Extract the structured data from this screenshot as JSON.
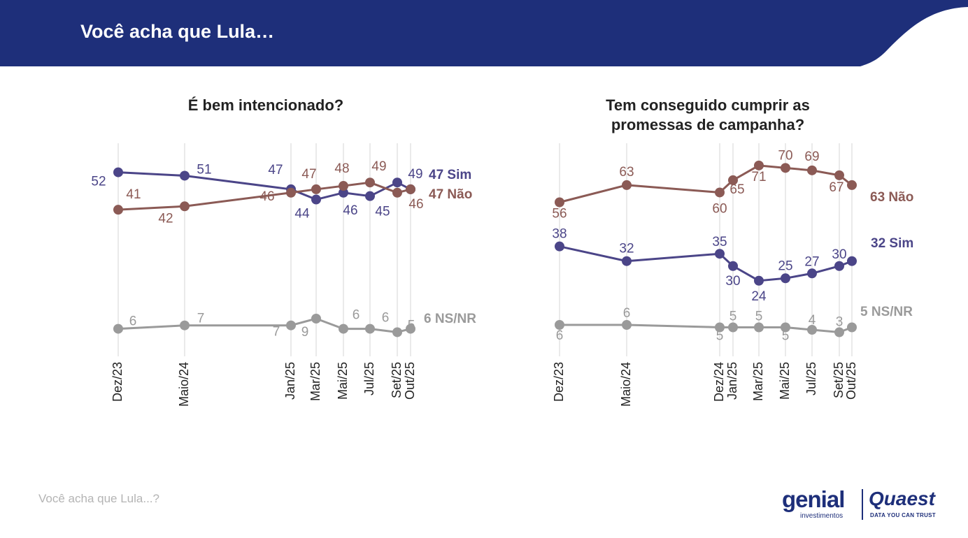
{
  "header": {
    "title": "Você acha que Lula…"
  },
  "footer": {
    "text": "Você acha que Lula...?"
  },
  "logos": {
    "genial": "genial",
    "genial_sub": "investimentos",
    "quaest": "Quaest",
    "quaest_sub": "DATA YOU CAN TRUST"
  },
  "colors": {
    "header_bg": "#1e2f7a",
    "sim": "#4b4588",
    "nao": "#8b5a55",
    "nsnr": "#9a9a9a"
  },
  "chart_data": [
    {
      "type": "line",
      "title": "É bem intencionado?",
      "x": [
        "Dez/23",
        "Maio/24",
        "Jan/25",
        "Mar/25",
        "Mai/25",
        "Jul/25",
        "Set/25",
        "Out/25"
      ],
      "series": [
        {
          "name": "Sim",
          "end_label": "47 Sim",
          "color": "#4b4588",
          "values": [
            52,
            51,
            47,
            44,
            46,
            45,
            49,
            47
          ],
          "labels": [
            "52",
            "51",
            "47",
            "44",
            "46",
            "45",
            "49",
            ""
          ]
        },
        {
          "name": "Não",
          "end_label": "47 Não",
          "color": "#8b5a55",
          "values": [
            41,
            42,
            46,
            47,
            48,
            49,
            46,
            47
          ],
          "labels": [
            "41",
            "42",
            "46",
            "47",
            "48",
            "49",
            "46",
            ""
          ]
        },
        {
          "name": "NS/NR",
          "end_label": "6 NS/NR",
          "color": "#9a9a9a",
          "values": [
            6,
            7,
            7,
            9,
            6,
            6,
            5,
            6
          ],
          "labels": [
            "6",
            "7",
            "7",
            "9",
            "6",
            "6",
            "5",
            ""
          ]
        }
      ]
    },
    {
      "type": "line",
      "title": "Tem conseguido cumprir as promessas de campanha?",
      "x": [
        "Dez/23",
        "Maio/24",
        "Dez/24",
        "Jan/25",
        "Mar/25",
        "Mai/25",
        "Jul/25",
        "Set/25",
        "Out/25"
      ],
      "series": [
        {
          "name": "Não",
          "end_label": "63 Não",
          "color": "#8b5a55",
          "values": [
            56,
            63,
            60,
            65,
            71,
            70,
            69,
            67,
            63
          ],
          "labels": [
            "56",
            "63",
            "60",
            "65",
            "71",
            "70",
            "69",
            "67",
            ""
          ]
        },
        {
          "name": "Sim",
          "end_label": "32 Sim",
          "color": "#4b4588",
          "values": [
            38,
            32,
            35,
            30,
            24,
            25,
            27,
            30,
            32
          ],
          "labels": [
            "38",
            "32",
            "35",
            "30",
            "24",
            "25",
            "27",
            "30",
            ""
          ]
        },
        {
          "name": "NS/NR",
          "end_label": "5 NS/NR",
          "color": "#9a9a9a",
          "values": [
            6,
            6,
            5,
            5,
            5,
            5,
            4,
            3,
            5
          ],
          "labels": [
            "6",
            "6",
            "5",
            "5",
            "5",
            "5",
            "4",
            "3",
            ""
          ]
        }
      ]
    }
  ]
}
